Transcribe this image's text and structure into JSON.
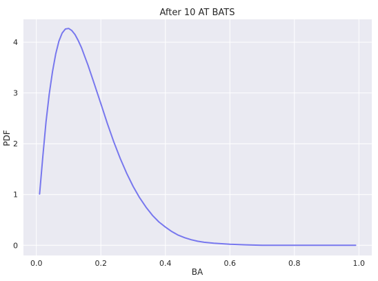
{
  "chart_data": {
    "type": "line",
    "title": "After 10 AT BATS",
    "xlabel": "BA",
    "ylabel": "PDF",
    "xlim": [
      -0.04,
      1.04
    ],
    "ylim": [
      -0.2,
      4.45
    ],
    "grid": true,
    "legend": "none",
    "xticks": [
      0.0,
      0.2,
      0.4,
      0.6,
      0.8,
      1.0
    ],
    "xtick_labels": [
      "0.0",
      "0.2",
      "0.4",
      "0.6",
      "0.8",
      "1.0"
    ],
    "yticks": [
      0,
      1,
      2,
      3,
      4
    ],
    "ytick_labels": [
      "0",
      "1",
      "2",
      "3",
      "4"
    ],
    "colors": {
      "axes_background": "#eaeaf2",
      "grid": "#ffffff",
      "line": "#7777ee"
    },
    "series": [
      {
        "x": [
          0.01,
          0.02,
          0.03,
          0.04,
          0.05,
          0.06,
          0.07,
          0.08,
          0.09,
          0.1,
          0.11,
          0.12,
          0.13,
          0.14,
          0.15,
          0.16,
          0.18,
          0.2,
          0.22,
          0.24,
          0.26,
          0.28,
          0.3,
          0.32,
          0.34,
          0.36,
          0.38,
          0.4,
          0.42,
          0.44,
          0.46,
          0.48,
          0.5,
          0.52,
          0.55,
          0.6,
          0.65,
          0.7,
          0.75,
          0.8,
          0.85,
          0.9,
          0.95,
          0.99
        ],
        "values": [
          1.01,
          1.75,
          2.43,
          2.98,
          3.42,
          3.77,
          4.02,
          4.18,
          4.26,
          4.27,
          4.23,
          4.15,
          4.03,
          3.89,
          3.72,
          3.55,
          3.17,
          2.79,
          2.4,
          2.04,
          1.71,
          1.42,
          1.16,
          0.94,
          0.75,
          0.59,
          0.46,
          0.36,
          0.27,
          0.2,
          0.15,
          0.11,
          0.08,
          0.06,
          0.04,
          0.02,
          0.01,
          0.0,
          0.0,
          0.0,
          0.0,
          0.0,
          0.0,
          0.0
        ]
      }
    ]
  }
}
